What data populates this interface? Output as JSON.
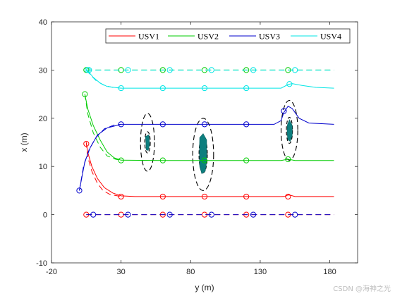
{
  "watermark": "CSDN @海神之光",
  "chart_data": {
    "type": "line",
    "xlabel": "y (m)",
    "ylabel": "x (m)",
    "xlim": [
      -20,
      200
    ],
    "ylim": [
      -10,
      40
    ],
    "xticks": [
      -20,
      30,
      80,
      130,
      180
    ],
    "yticks": [
      -10,
      0,
      10,
      20,
      30,
      40
    ],
    "grid": false,
    "legend_position": "top-right",
    "series": [
      {
        "name": "USV1",
        "color": "#ff0000",
        "trajectory": [
          [
            5,
            15
          ],
          [
            6,
            13
          ],
          [
            9,
            10
          ],
          [
            13,
            7.5
          ],
          [
            18,
            5.6
          ],
          [
            24,
            4.5
          ],
          [
            30,
            3.9
          ],
          [
            40,
            3.75
          ],
          [
            60,
            3.75
          ],
          [
            100,
            3.75
          ],
          [
            145,
            3.75
          ],
          [
            148,
            3.8
          ],
          [
            150,
            4.1
          ],
          [
            152,
            4.0
          ],
          [
            155,
            3.75
          ],
          [
            183,
            3.75
          ]
        ],
        "reference_start": [
          [
            5,
            15
          ],
          [
            6,
            12
          ],
          [
            9,
            9
          ],
          [
            13,
            6.5
          ],
          [
            17,
            5
          ],
          [
            22,
            4.2
          ],
          [
            30,
            3.75
          ]
        ],
        "reference_line": [
          [
            5,
            0
          ],
          [
            183,
            0
          ]
        ],
        "markers_traj": [
          [
            5,
            14.7
          ],
          [
            30,
            3.75
          ],
          [
            60,
            3.75
          ],
          [
            90,
            3.75
          ],
          [
            120,
            3.75
          ],
          [
            150,
            3.75
          ]
        ],
        "markers_ref": [
          [
            5,
            0
          ],
          [
            30,
            0
          ],
          [
            60,
            0
          ],
          [
            90,
            0
          ],
          [
            120,
            0
          ],
          [
            150,
            0
          ]
        ]
      },
      {
        "name": "USV2",
        "color": "#00cc00",
        "trajectory": [
          [
            4,
            25
          ],
          [
            6,
            22
          ],
          [
            10,
            18.5
          ],
          [
            15,
            15.5
          ],
          [
            20,
            13
          ],
          [
            25,
            11.8
          ],
          [
            30,
            11.3
          ],
          [
            60,
            11.25
          ],
          [
            100,
            11.25
          ],
          [
            145,
            11.25
          ],
          [
            150,
            11.5
          ],
          [
            155,
            11.25
          ],
          [
            183,
            11.25
          ]
        ],
        "reference_start": [
          [
            4,
            25
          ],
          [
            6,
            21
          ],
          [
            10,
            17
          ],
          [
            15,
            14
          ],
          [
            20,
            12.2
          ],
          [
            26,
            11.5
          ],
          [
            30,
            11.25
          ]
        ],
        "reference_line": [
          [
            5,
            30
          ],
          [
            183,
            30
          ]
        ],
        "markers_traj": [
          [
            4,
            25
          ],
          [
            30,
            11.25
          ],
          [
            60,
            11.25
          ],
          [
            90,
            11.25
          ],
          [
            120,
            11.25
          ],
          [
            150,
            11.5
          ]
        ],
        "markers_ref": [
          [
            5,
            30
          ],
          [
            30,
            30
          ],
          [
            60,
            30
          ],
          [
            90,
            30
          ],
          [
            120,
            30
          ],
          [
            150,
            30
          ]
        ]
      },
      {
        "name": "USV3",
        "color": "#0000cc",
        "trajectory": [
          [
            0,
            5
          ],
          [
            2,
            8
          ],
          [
            4,
            11
          ],
          [
            8,
            14
          ],
          [
            13,
            16.5
          ],
          [
            20,
            18
          ],
          [
            30,
            18.75
          ],
          [
            60,
            18.75
          ],
          [
            100,
            18.75
          ],
          [
            140,
            18.75
          ],
          [
            145,
            19.5
          ],
          [
            147,
            21.2
          ],
          [
            150,
            22.5
          ],
          [
            153,
            22
          ],
          [
            158,
            20
          ],
          [
            165,
            19
          ],
          [
            183,
            18.75
          ]
        ],
        "reference_start": [
          [
            0,
            5
          ],
          [
            3,
            10
          ],
          [
            7,
            13.5
          ],
          [
            12,
            16
          ],
          [
            18,
            17.8
          ],
          [
            25,
            18.6
          ],
          [
            30,
            18.75
          ]
        ],
        "reference_line": [
          [
            5,
            0
          ],
          [
            183,
            0
          ]
        ],
        "markers_traj": [
          [
            0,
            5
          ],
          [
            30,
            18.75
          ],
          [
            60,
            18.75
          ],
          [
            90,
            18.75
          ],
          [
            120,
            18.75
          ],
          [
            147,
            21.5
          ]
        ],
        "markers_ref": [
          [
            10,
            0
          ],
          [
            35,
            0
          ],
          [
            65,
            0
          ],
          [
            95,
            0
          ],
          [
            125,
            0
          ],
          [
            155,
            0
          ]
        ]
      },
      {
        "name": "USV4",
        "color": "#00e5e5",
        "trajectory": [
          [
            5,
            30
          ],
          [
            7,
            29.5
          ],
          [
            10,
            28.5
          ],
          [
            15,
            27.3
          ],
          [
            20,
            26.6
          ],
          [
            25,
            26.4
          ],
          [
            30,
            26.25
          ],
          [
            60,
            26.25
          ],
          [
            100,
            26.25
          ],
          [
            145,
            26.25
          ],
          [
            150,
            27
          ],
          [
            153,
            27.2
          ],
          [
            160,
            26.8
          ],
          [
            170,
            26.4
          ],
          [
            183,
            26.25
          ]
        ],
        "reference_start": [
          [
            5,
            30
          ],
          [
            8,
            29
          ],
          [
            12,
            27.8
          ],
          [
            18,
            26.8
          ],
          [
            24,
            26.4
          ],
          [
            30,
            26.25
          ]
        ],
        "reference_line": [
          [
            5,
            30
          ],
          [
            183,
            30
          ]
        ],
        "markers_traj": [
          [
            6,
            30
          ],
          [
            30,
            26.25
          ],
          [
            60,
            26.25
          ],
          [
            90,
            26.25
          ],
          [
            120,
            26.25
          ],
          [
            151,
            27.1
          ]
        ],
        "markers_ref": [
          [
            7,
            30
          ],
          [
            35,
            30
          ],
          [
            65,
            30
          ],
          [
            95,
            30
          ],
          [
            125,
            30
          ],
          [
            155,
            30
          ]
        ]
      }
    ],
    "obstacles": [
      {
        "center": [
          49,
          15
        ],
        "semi_axes": [
          5,
          6
        ],
        "body_semi_axes": [
          2,
          2.2
        ],
        "body_points": [
          [
            47.5,
            16.2
          ],
          [
            50,
            16.6
          ],
          [
            50.5,
            14.5
          ],
          [
            49.5,
            13.3
          ],
          [
            48,
            13.5
          ],
          [
            47.8,
            15
          ]
        ]
      },
      {
        "center": [
          89,
          12.5
        ],
        "semi_axes": [
          7.5,
          7.5
        ],
        "body_semi_axes": [
          3,
          3.8
        ],
        "body_points": [
          [
            86.5,
            16
          ],
          [
            89,
            16.8
          ],
          [
            91.5,
            15.5
          ],
          [
            91.5,
            11
          ],
          [
            90.5,
            9
          ],
          [
            88,
            8.5
          ],
          [
            86.5,
            10
          ],
          [
            86.3,
            13
          ]
        ]
      },
      {
        "center": [
          151,
          17.5
        ],
        "semi_axes": [
          6,
          6.2
        ],
        "body_semi_axes": [
          2.2,
          2.7
        ],
        "body_points": [
          [
            149.5,
            18.6
          ],
          [
            151,
            19.7
          ],
          [
            153,
            18.5
          ],
          [
            153,
            16.4
          ],
          [
            151.5,
            15.2
          ],
          [
            149.8,
            15.6
          ],
          [
            149.3,
            17
          ]
        ]
      }
    ]
  }
}
